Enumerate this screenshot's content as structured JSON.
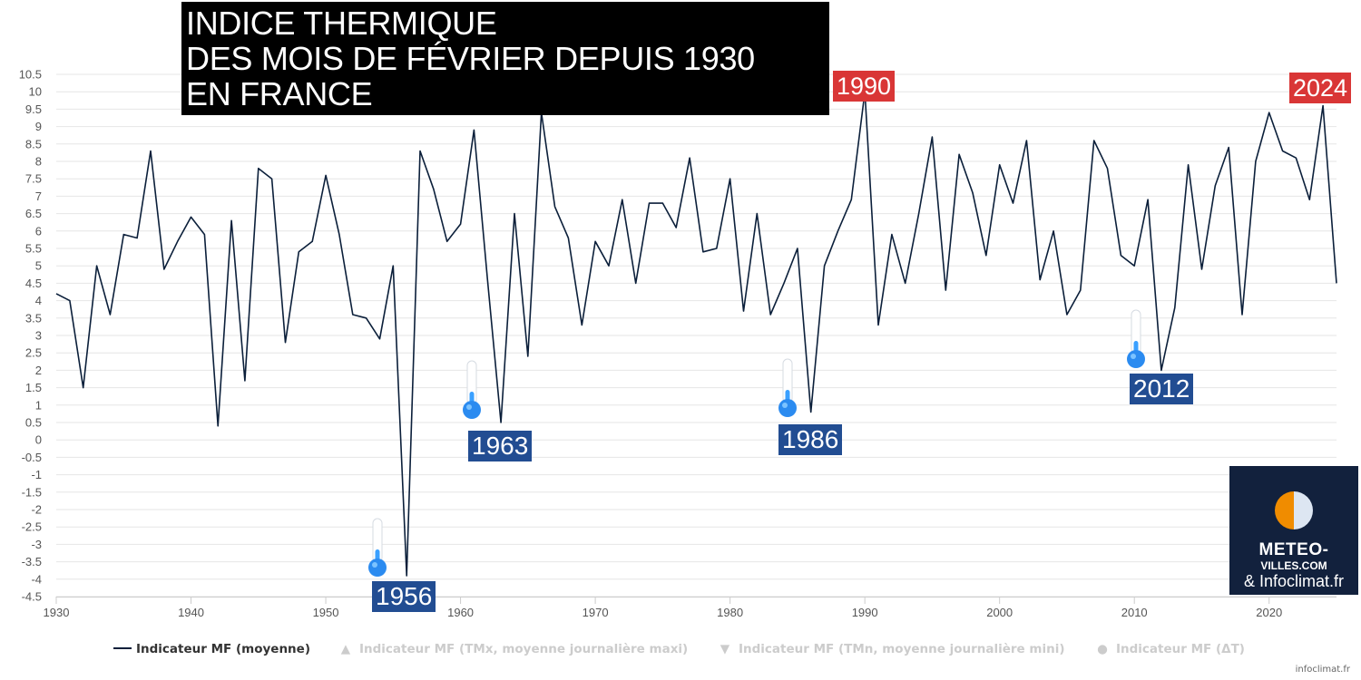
{
  "title": {
    "line1": "INDICE THERMIQUE",
    "line2": "DES MOIS DE FÉVRIER DEPUIS 1930",
    "line3": "EN FRANCE"
  },
  "annotations": {
    "cold": [
      "1956",
      "1963",
      "1986",
      "2012"
    ],
    "warm": [
      "1990",
      "2024"
    ]
  },
  "logo": {
    "line1": "METEO-",
    "line2": "VILLES.COM",
    "line3": "& Infoclimat.fr"
  },
  "legend": {
    "item1": "Indicateur MF (moyenne)",
    "item2": "Indicateur MF (TMx, moyenne journalière maxi)",
    "item3": "Indicateur MF (TMn, moyenne journalière mini)",
    "item4": "Indicateur MF (ΔT)"
  },
  "credit": "infoclimat.fr",
  "colors": {
    "line": "#0b1f3a",
    "grid": "#e6e6e6",
    "cold_tag": "#224d92",
    "warm_tag": "#d93636",
    "logo_bg": "#12213d"
  },
  "chart_data": {
    "type": "line",
    "xlim": [
      1930,
      2025
    ],
    "ylim": [
      -4.5,
      10.5
    ],
    "x_ticks": [
      1930,
      1940,
      1950,
      1960,
      1970,
      1980,
      1990,
      2000,
      2010,
      2020
    ],
    "y_ticks": [
      -4.5,
      -4,
      -3.5,
      -3,
      -2.5,
      -2,
      -1.5,
      -1,
      -0.5,
      0,
      0.5,
      1,
      1.5,
      2,
      2.5,
      3,
      3.5,
      4,
      4.5,
      5,
      5.5,
      6,
      6.5,
      7,
      7.5,
      8,
      8.5,
      9,
      9.5,
      10,
      10.5
    ],
    "grid": true,
    "legend_position": "bottom",
    "series": [
      {
        "name": "Indicateur MF (moyenne)",
        "x": [
          1930,
          1931,
          1932,
          1933,
          1934,
          1935,
          1936,
          1937,
          1938,
          1939,
          1940,
          1941,
          1942,
          1943,
          1944,
          1945,
          1946,
          1947,
          1948,
          1949,
          1950,
          1951,
          1952,
          1953,
          1954,
          1955,
          1956,
          1957,
          1958,
          1959,
          1960,
          1961,
          1962,
          1963,
          1964,
          1965,
          1966,
          1967,
          1968,
          1969,
          1970,
          1971,
          1972,
          1973,
          1974,
          1975,
          1976,
          1977,
          1978,
          1979,
          1980,
          1981,
          1982,
          1983,
          1984,
          1985,
          1986,
          1987,
          1988,
          1989,
          1990,
          1991,
          1992,
          1993,
          1994,
          1995,
          1996,
          1997,
          1998,
          1999,
          2000,
          2001,
          2002,
          2003,
          2004,
          2005,
          2006,
          2007,
          2008,
          2009,
          2010,
          2011,
          2012,
          2013,
          2014,
          2015,
          2016,
          2017,
          2018,
          2019,
          2020,
          2021,
          2022,
          2023,
          2024,
          2025
        ],
        "values": [
          4.2,
          4.0,
          1.5,
          5.0,
          3.6,
          5.9,
          5.8,
          8.3,
          4.9,
          5.7,
          6.4,
          5.9,
          0.4,
          6.3,
          1.7,
          7.8,
          7.5,
          2.8,
          5.4,
          5.7,
          7.6,
          5.9,
          3.6,
          3.5,
          2.9,
          5.0,
          -3.9,
          8.3,
          7.2,
          5.7,
          6.2,
          8.9,
          4.6,
          0.5,
          6.5,
          2.4,
          9.4,
          6.7,
          5.8,
          3.3,
          5.7,
          5.0,
          6.9,
          4.5,
          6.8,
          6.8,
          6.1,
          8.1,
          5.4,
          5.5,
          7.5,
          3.7,
          6.5,
          3.6,
          4.5,
          5.5,
          0.8,
          5.0,
          6.0,
          6.9,
          10.0,
          3.3,
          5.9,
          4.5,
          6.5,
          8.7,
          4.3,
          8.2,
          7.1,
          5.3,
          7.9,
          6.8,
          8.6,
          4.6,
          6.0,
          3.6,
          4.3,
          8.6,
          7.8,
          5.3,
          5.0,
          6.9,
          2.0,
          3.8,
          7.9,
          4.9,
          7.3,
          8.4,
          3.6,
          8.0,
          9.4,
          8.3,
          8.1,
          6.9,
          9.6,
          4.5
        ]
      }
    ]
  }
}
